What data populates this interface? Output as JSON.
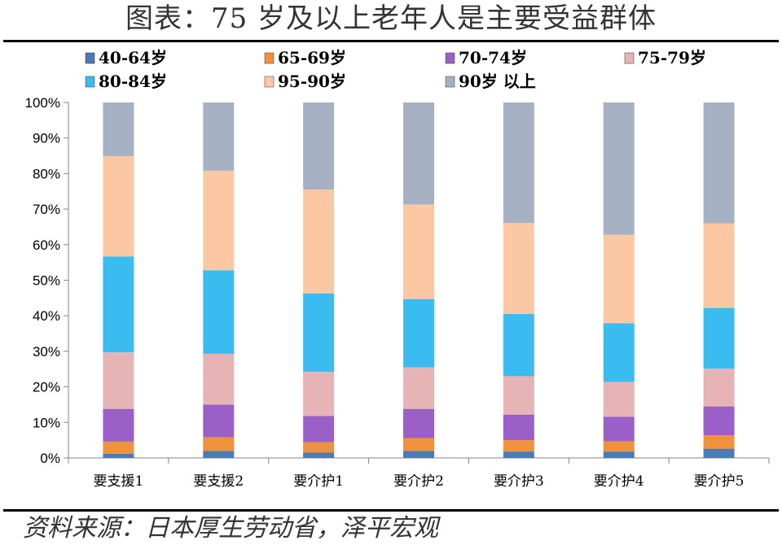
{
  "title": "图表：75 岁及以上老年人是主要受益群体",
  "source": "资料来源：日本厚生劳动省，泽平宏观",
  "chart_data": {
    "type": "bar",
    "stacked": true,
    "percent": true,
    "categories": [
      "要支援1",
      "要支援2",
      "要介护1",
      "要介护2",
      "要介护3",
      "要介护4",
      "要介护5"
    ],
    "ylim": [
      0,
      100
    ],
    "yticks": [
      "0%",
      "10%",
      "20%",
      "30%",
      "40%",
      "50%",
      "60%",
      "70%",
      "80%",
      "90%",
      "100%"
    ],
    "grid": false,
    "legend_position": "top",
    "series": [
      {
        "name": "40-64岁",
        "color": "#4a7ab8",
        "values": [
          1.2,
          2.0,
          1.5,
          2.0,
          1.8,
          1.8,
          2.6
        ]
      },
      {
        "name": "65-69岁",
        "color": "#f0913c",
        "values": [
          3.4,
          3.8,
          2.9,
          3.6,
          3.2,
          2.9,
          3.8
        ]
      },
      {
        "name": "70-74岁",
        "color": "#9b5fc8",
        "values": [
          9.2,
          9.2,
          7.4,
          8.2,
          7.2,
          6.9,
          8.1
        ]
      },
      {
        "name": "75-79岁",
        "color": "#e6b4b4",
        "values": [
          15.9,
          14.3,
          12.4,
          11.7,
          10.8,
          9.8,
          10.6
        ]
      },
      {
        "name": "80-84岁",
        "color": "#3bbcf0",
        "values": [
          27.0,
          23.5,
          22.1,
          19.2,
          17.5,
          16.5,
          17.1
        ]
      },
      {
        "name": "95-90岁",
        "color": "#fcc8a4",
        "values": [
          28.2,
          28.0,
          29.2,
          26.6,
          25.6,
          24.9,
          23.8
        ]
      },
      {
        "name": "90岁 以上",
        "color": "#a6b2c4",
        "values": [
          15.1,
          19.2,
          24.5,
          28.7,
          33.9,
          37.2,
          34.0
        ]
      }
    ]
  }
}
